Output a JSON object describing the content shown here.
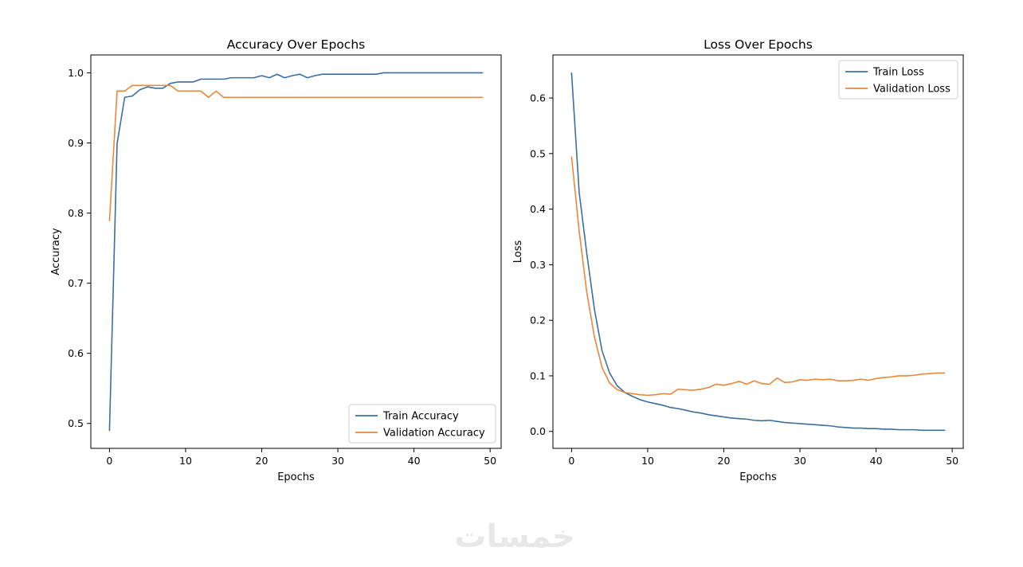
{
  "watermark": "خمسات",
  "chart_data": [
    {
      "type": "line",
      "title": "Accuracy Over Epochs",
      "xlabel": "Epochs",
      "ylabel": "Accuracy",
      "xlim": [
        -2.45,
        51.45
      ],
      "ylim": [
        0.4645,
        1.0255
      ],
      "xticks": [
        0,
        10,
        20,
        30,
        40,
        50
      ],
      "yticks": [
        0.5,
        0.6,
        0.7,
        0.8,
        0.9,
        1.0
      ],
      "xtick_labels": [
        "0",
        "10",
        "20",
        "30",
        "40",
        "50"
      ],
      "ytick_labels": [
        "0.5",
        "0.6",
        "0.7",
        "0.8",
        "0.9",
        "1.0"
      ],
      "legend_position": "lower-right",
      "series": [
        {
          "name": "Train Accuracy",
          "color": "#3a6fa0",
          "values": [
            0.49,
            0.899,
            0.965,
            0.967,
            0.976,
            0.98,
            0.978,
            0.978,
            0.985,
            0.987,
            0.987,
            0.987,
            0.991,
            0.991,
            0.991,
            0.991,
            0.993,
            0.993,
            0.993,
            0.993,
            0.996,
            0.993,
            0.998,
            0.993,
            0.996,
            0.998,
            0.993,
            0.996,
            0.998,
            0.998,
            0.998,
            0.998,
            0.998,
            0.998,
            0.998,
            0.998,
            1.0,
            1.0,
            1.0,
            1.0,
            1.0,
            1.0,
            1.0,
            1.0,
            1.0,
            1.0,
            1.0,
            1.0,
            1.0,
            1.0
          ]
        },
        {
          "name": "Validation Accuracy",
          "color": "#e8883a",
          "values": [
            0.789,
            0.974,
            0.974,
            0.982,
            0.982,
            0.982,
            0.982,
            0.982,
            0.982,
            0.974,
            0.974,
            0.974,
            0.974,
            0.965,
            0.974,
            0.965,
            0.965,
            0.965,
            0.965,
            0.965,
            0.965,
            0.965,
            0.965,
            0.965,
            0.965,
            0.965,
            0.965,
            0.965,
            0.965,
            0.965,
            0.965,
            0.965,
            0.965,
            0.965,
            0.965,
            0.965,
            0.965,
            0.965,
            0.965,
            0.965,
            0.965,
            0.965,
            0.965,
            0.965,
            0.965,
            0.965,
            0.965,
            0.965,
            0.965,
            0.965
          ]
        }
      ]
    },
    {
      "type": "line",
      "title": "Loss Over Epochs",
      "xlabel": "Epochs",
      "ylabel": "Loss",
      "xlim": [
        -2.45,
        51.45
      ],
      "ylim": [
        -0.0305,
        0.6775
      ],
      "xticks": [
        0,
        10,
        20,
        30,
        40,
        50
      ],
      "yticks": [
        0.0,
        0.1,
        0.2,
        0.3,
        0.4,
        0.5,
        0.6
      ],
      "xtick_labels": [
        "0",
        "10",
        "20",
        "30",
        "40",
        "50"
      ],
      "ytick_labels": [
        "0.0",
        "0.1",
        "0.2",
        "0.3",
        "0.4",
        "0.5",
        "0.6"
      ],
      "legend_position": "upper-right",
      "series": [
        {
          "name": "Train Loss",
          "color": "#3a6fa0",
          "values": [
            0.645,
            0.43,
            0.32,
            0.22,
            0.145,
            0.105,
            0.082,
            0.07,
            0.063,
            0.057,
            0.053,
            0.05,
            0.047,
            0.043,
            0.041,
            0.038,
            0.035,
            0.033,
            0.03,
            0.028,
            0.026,
            0.024,
            0.023,
            0.022,
            0.02,
            0.019,
            0.02,
            0.018,
            0.016,
            0.015,
            0.014,
            0.013,
            0.012,
            0.011,
            0.01,
            0.008,
            0.007,
            0.006,
            0.006,
            0.005,
            0.005,
            0.004,
            0.004,
            0.003,
            0.003,
            0.003,
            0.002,
            0.002,
            0.002,
            0.002
          ]
        },
        {
          "name": "Validation Loss",
          "color": "#e8883a",
          "values": [
            0.494,
            0.36,
            0.25,
            0.17,
            0.115,
            0.087,
            0.075,
            0.07,
            0.068,
            0.066,
            0.065,
            0.066,
            0.068,
            0.067,
            0.076,
            0.075,
            0.074,
            0.076,
            0.079,
            0.085,
            0.083,
            0.086,
            0.09,
            0.085,
            0.091,
            0.086,
            0.085,
            0.096,
            0.088,
            0.089,
            0.093,
            0.092,
            0.094,
            0.093,
            0.094,
            0.091,
            0.091,
            0.092,
            0.094,
            0.092,
            0.095,
            0.097,
            0.098,
            0.1,
            0.1,
            0.101,
            0.103,
            0.104,
            0.105,
            0.105
          ]
        }
      ]
    }
  ]
}
